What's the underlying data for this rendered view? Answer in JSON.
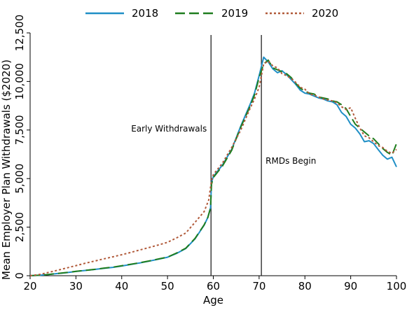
{
  "chart_data": {
    "type": "line",
    "xlabel": "Age",
    "ylabel": "Mean Employer Plan Withdrawals ($2020)",
    "xlim": [
      20,
      100
    ],
    "ylim": [
      0,
      12500
    ],
    "x_ticks": [
      20,
      30,
      40,
      50,
      60,
      70,
      80,
      90,
      100
    ],
    "y_ticks": [
      0,
      2500,
      5000,
      7500,
      10000,
      12500
    ],
    "y_tick_labels": [
      "0",
      "2,500",
      "5,000",
      "7,500",
      "10,000",
      "12,500"
    ],
    "grid": false,
    "legend_position": "top",
    "vlines": [
      {
        "x": 59.5,
        "label": "Early Withdrawals"
      },
      {
        "x": 70.5,
        "label": "RMDs Begin"
      }
    ],
    "series": [
      {
        "name": "2018",
        "color": "#1f8fc6",
        "style": "solid",
        "points": [
          [
            20,
            0
          ],
          [
            22,
            20
          ],
          [
            24,
            60
          ],
          [
            26,
            110
          ],
          [
            28,
            160
          ],
          [
            30,
            220
          ],
          [
            32,
            270
          ],
          [
            34,
            320
          ],
          [
            36,
            380
          ],
          [
            38,
            430
          ],
          [
            40,
            500
          ],
          [
            42,
            580
          ],
          [
            44,
            660
          ],
          [
            46,
            750
          ],
          [
            48,
            850
          ],
          [
            50,
            950
          ],
          [
            52,
            1150
          ],
          [
            54,
            1400
          ],
          [
            56,
            1900
          ],
          [
            58,
            2600
          ],
          [
            58.8,
            3000
          ],
          [
            59.4,
            3500
          ],
          [
            59.6,
            4800
          ],
          [
            60,
            5100
          ],
          [
            62,
            5700
          ],
          [
            64,
            6500
          ],
          [
            66,
            7700
          ],
          [
            68,
            8800
          ],
          [
            69,
            9400
          ],
          [
            70,
            10300
          ],
          [
            71,
            11250
          ],
          [
            72,
            11000
          ],
          [
            73,
            10650
          ],
          [
            74,
            10450
          ],
          [
            75,
            10550
          ],
          [
            76,
            10350
          ],
          [
            77,
            10100
          ],
          [
            78,
            9850
          ],
          [
            79,
            9550
          ],
          [
            80,
            9400
          ],
          [
            81,
            9350
          ],
          [
            82,
            9250
          ],
          [
            83,
            9150
          ],
          [
            84,
            9100
          ],
          [
            85,
            9000
          ],
          [
            86,
            8950
          ],
          [
            87,
            8800
          ],
          [
            88,
            8400
          ],
          [
            89,
            8200
          ],
          [
            90,
            7800
          ],
          [
            91,
            7600
          ],
          [
            92,
            7300
          ],
          [
            93,
            6900
          ],
          [
            94,
            6950
          ],
          [
            95,
            6800
          ],
          [
            96,
            6500
          ],
          [
            97,
            6200
          ],
          [
            98,
            6000
          ],
          [
            99,
            6100
          ],
          [
            100,
            5600
          ]
        ]
      },
      {
        "name": "2019",
        "color": "#1e7d1e",
        "style": "dashed",
        "points": [
          [
            20,
            0
          ],
          [
            22,
            25
          ],
          [
            24,
            65
          ],
          [
            26,
            115
          ],
          [
            28,
            165
          ],
          [
            30,
            225
          ],
          [
            32,
            275
          ],
          [
            34,
            325
          ],
          [
            36,
            385
          ],
          [
            38,
            440
          ],
          [
            40,
            510
          ],
          [
            42,
            590
          ],
          [
            44,
            670
          ],
          [
            46,
            760
          ],
          [
            48,
            860
          ],
          [
            50,
            960
          ],
          [
            52,
            1170
          ],
          [
            54,
            1420
          ],
          [
            56,
            1920
          ],
          [
            58,
            2620
          ],
          [
            58.8,
            3000
          ],
          [
            59.4,
            3500
          ],
          [
            59.6,
            4700
          ],
          [
            60,
            5050
          ],
          [
            62,
            5650
          ],
          [
            64,
            6450
          ],
          [
            66,
            7650
          ],
          [
            68,
            8700
          ],
          [
            69,
            9300
          ],
          [
            70,
            10200
          ],
          [
            71,
            10900
          ],
          [
            72,
            11100
          ],
          [
            73,
            10700
          ],
          [
            74,
            10600
          ],
          [
            75,
            10500
          ],
          [
            76,
            10400
          ],
          [
            77,
            10200
          ],
          [
            78,
            9900
          ],
          [
            79,
            9650
          ],
          [
            80,
            9500
          ],
          [
            81,
            9400
          ],
          [
            82,
            9350
          ],
          [
            83,
            9200
          ],
          [
            84,
            9150
          ],
          [
            85,
            9100
          ],
          [
            86,
            9000
          ],
          [
            87,
            8950
          ],
          [
            88,
            8800
          ],
          [
            89,
            8600
          ],
          [
            90,
            8200
          ],
          [
            91,
            7800
          ],
          [
            92,
            7600
          ],
          [
            93,
            7400
          ],
          [
            94,
            7200
          ],
          [
            95,
            7050
          ],
          [
            96,
            6800
          ],
          [
            97,
            6550
          ],
          [
            98,
            6350
          ],
          [
            99,
            6200
          ],
          [
            100,
            6800
          ]
        ]
      },
      {
        "name": "2020",
        "color": "#b15a3a",
        "style": "dotted",
        "points": [
          [
            20,
            0
          ],
          [
            22,
            60
          ],
          [
            24,
            170
          ],
          [
            26,
            280
          ],
          [
            28,
            400
          ],
          [
            30,
            520
          ],
          [
            32,
            640
          ],
          [
            34,
            750
          ],
          [
            36,
            860
          ],
          [
            38,
            970
          ],
          [
            40,
            1080
          ],
          [
            42,
            1200
          ],
          [
            44,
            1330
          ],
          [
            46,
            1450
          ],
          [
            48,
            1580
          ],
          [
            50,
            1720
          ],
          [
            52,
            1950
          ],
          [
            54,
            2200
          ],
          [
            56,
            2750
          ],
          [
            58,
            3300
          ],
          [
            59,
            3900
          ],
          [
            59.6,
            4900
          ],
          [
            60,
            5200
          ],
          [
            62,
            5800
          ],
          [
            64,
            6600
          ],
          [
            66,
            7500
          ],
          [
            68,
            8600
          ],
          [
            69,
            9100
          ],
          [
            70,
            9700
          ],
          [
            71,
            10900
          ],
          [
            72,
            11050
          ],
          [
            73,
            10800
          ],
          [
            74,
            10700
          ],
          [
            75,
            10400
          ],
          [
            76,
            10300
          ],
          [
            77,
            10150
          ],
          [
            78,
            9950
          ],
          [
            79,
            9700
          ],
          [
            80,
            9600
          ],
          [
            81,
            9350
          ],
          [
            82,
            9300
          ],
          [
            83,
            9200
          ],
          [
            84,
            9100
          ],
          [
            85,
            9050
          ],
          [
            86,
            9000
          ],
          [
            87,
            8900
          ],
          [
            88,
            8700
          ],
          [
            89,
            8550
          ],
          [
            90,
            8650
          ],
          [
            91,
            8100
          ],
          [
            92,
            7600
          ],
          [
            93,
            7200
          ],
          [
            94,
            7100
          ],
          [
            95,
            6900
          ],
          [
            96,
            6700
          ],
          [
            97,
            6600
          ],
          [
            98,
            6400
          ],
          [
            99,
            6300
          ],
          [
            100,
            6500
          ]
        ]
      }
    ]
  }
}
